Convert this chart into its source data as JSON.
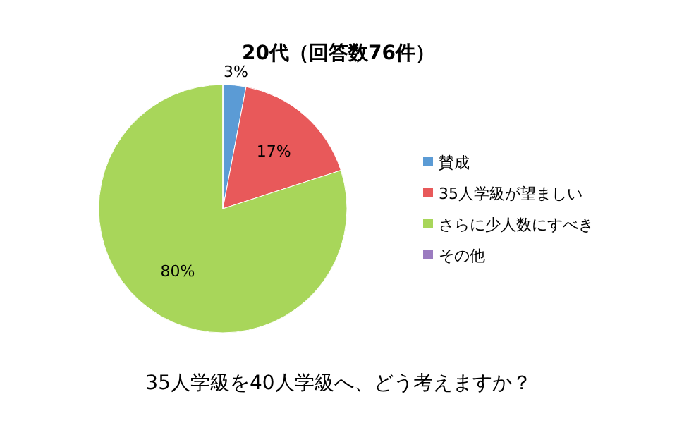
{
  "chart_data": {
    "type": "pie",
    "title": "20代（回答数76件）",
    "categories": [
      "賛成",
      "35人学級が望ましい",
      "さらに少人数にすべき",
      "その他"
    ],
    "values": [
      3,
      17,
      80,
      0
    ],
    "colors": [
      "#5b9bd5",
      "#e8595a",
      "#a8d65a",
      "#9b7bc0"
    ],
    "value_labels": [
      "3%",
      "17%",
      "80%",
      null
    ],
    "legend": "right",
    "annotations": [
      "35人学級を40人学級へ、どう考えますか？"
    ]
  }
}
